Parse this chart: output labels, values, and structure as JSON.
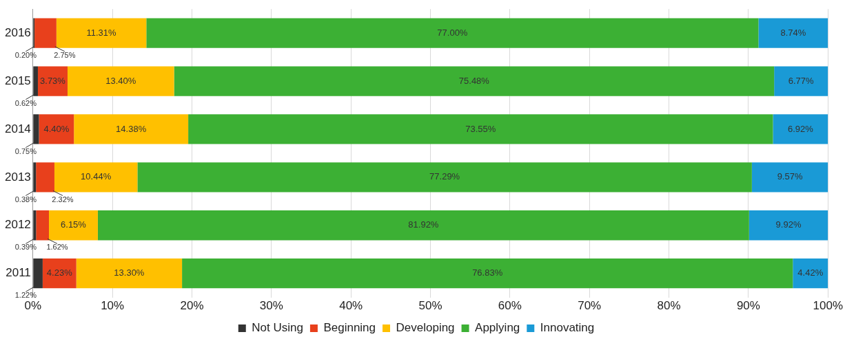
{
  "chart_data": {
    "type": "bar",
    "orientation": "horizontal",
    "stacked": true,
    "categories": [
      "2016",
      "2015",
      "2014",
      "2013",
      "2012",
      "2011"
    ],
    "series": [
      {
        "name": "Not Using",
        "color": "#333333",
        "values": [
          0.2,
          0.62,
          0.75,
          0.38,
          0.39,
          1.22
        ],
        "value_labels": [
          "0.20%",
          "0.62%",
          "0.75%",
          "0.38%",
          "0.39%",
          "1.22%"
        ]
      },
      {
        "name": "Beginning",
        "color": "#e8401c",
        "values": [
          2.75,
          3.73,
          4.4,
          2.32,
          1.62,
          4.23
        ],
        "value_labels": [
          "2.75%",
          "3.73%",
          "4.40%",
          "2.32%",
          "1.62%",
          "4.23%"
        ]
      },
      {
        "name": "Developing",
        "color": "#ffc000",
        "values": [
          11.31,
          13.4,
          14.38,
          10.44,
          6.15,
          13.3
        ],
        "value_labels": [
          "11.31%",
          "13.40%",
          "14.38%",
          "10.44%",
          "6.15%",
          "13.30%"
        ]
      },
      {
        "name": "Applying",
        "color": "#3cb034",
        "values": [
          77.0,
          75.48,
          73.55,
          77.29,
          81.92,
          76.83
        ],
        "value_labels": [
          "77.00%",
          "75.48%",
          "73.55%",
          "77.29%",
          "81.92%",
          "76.83%"
        ]
      },
      {
        "name": "Innovating",
        "color": "#1a9ad6",
        "values": [
          8.74,
          6.77,
          6.92,
          9.57,
          9.92,
          4.42
        ],
        "value_labels": [
          "8.74%",
          "6.77%",
          "6.92%",
          "9.57%",
          "9.92%",
          "4.42%"
        ]
      }
    ],
    "xlim": [
      0,
      100
    ],
    "xticks": [
      {
        "value": 0,
        "label": "0%"
      },
      {
        "value": 10,
        "label": "10%"
      },
      {
        "value": 20,
        "label": "20%"
      },
      {
        "value": 30,
        "label": "30%"
      },
      {
        "value": 40,
        "label": "40%"
      },
      {
        "value": 50,
        "label": "50%"
      },
      {
        "value": 60,
        "label": "60%"
      },
      {
        "value": 70,
        "label": "70%"
      },
      {
        "value": 80,
        "label": "80%"
      },
      {
        "value": 90,
        "label": "90%"
      },
      {
        "value": 100,
        "label": "100%"
      }
    ],
    "grid": "x",
    "legend": "bottom"
  }
}
